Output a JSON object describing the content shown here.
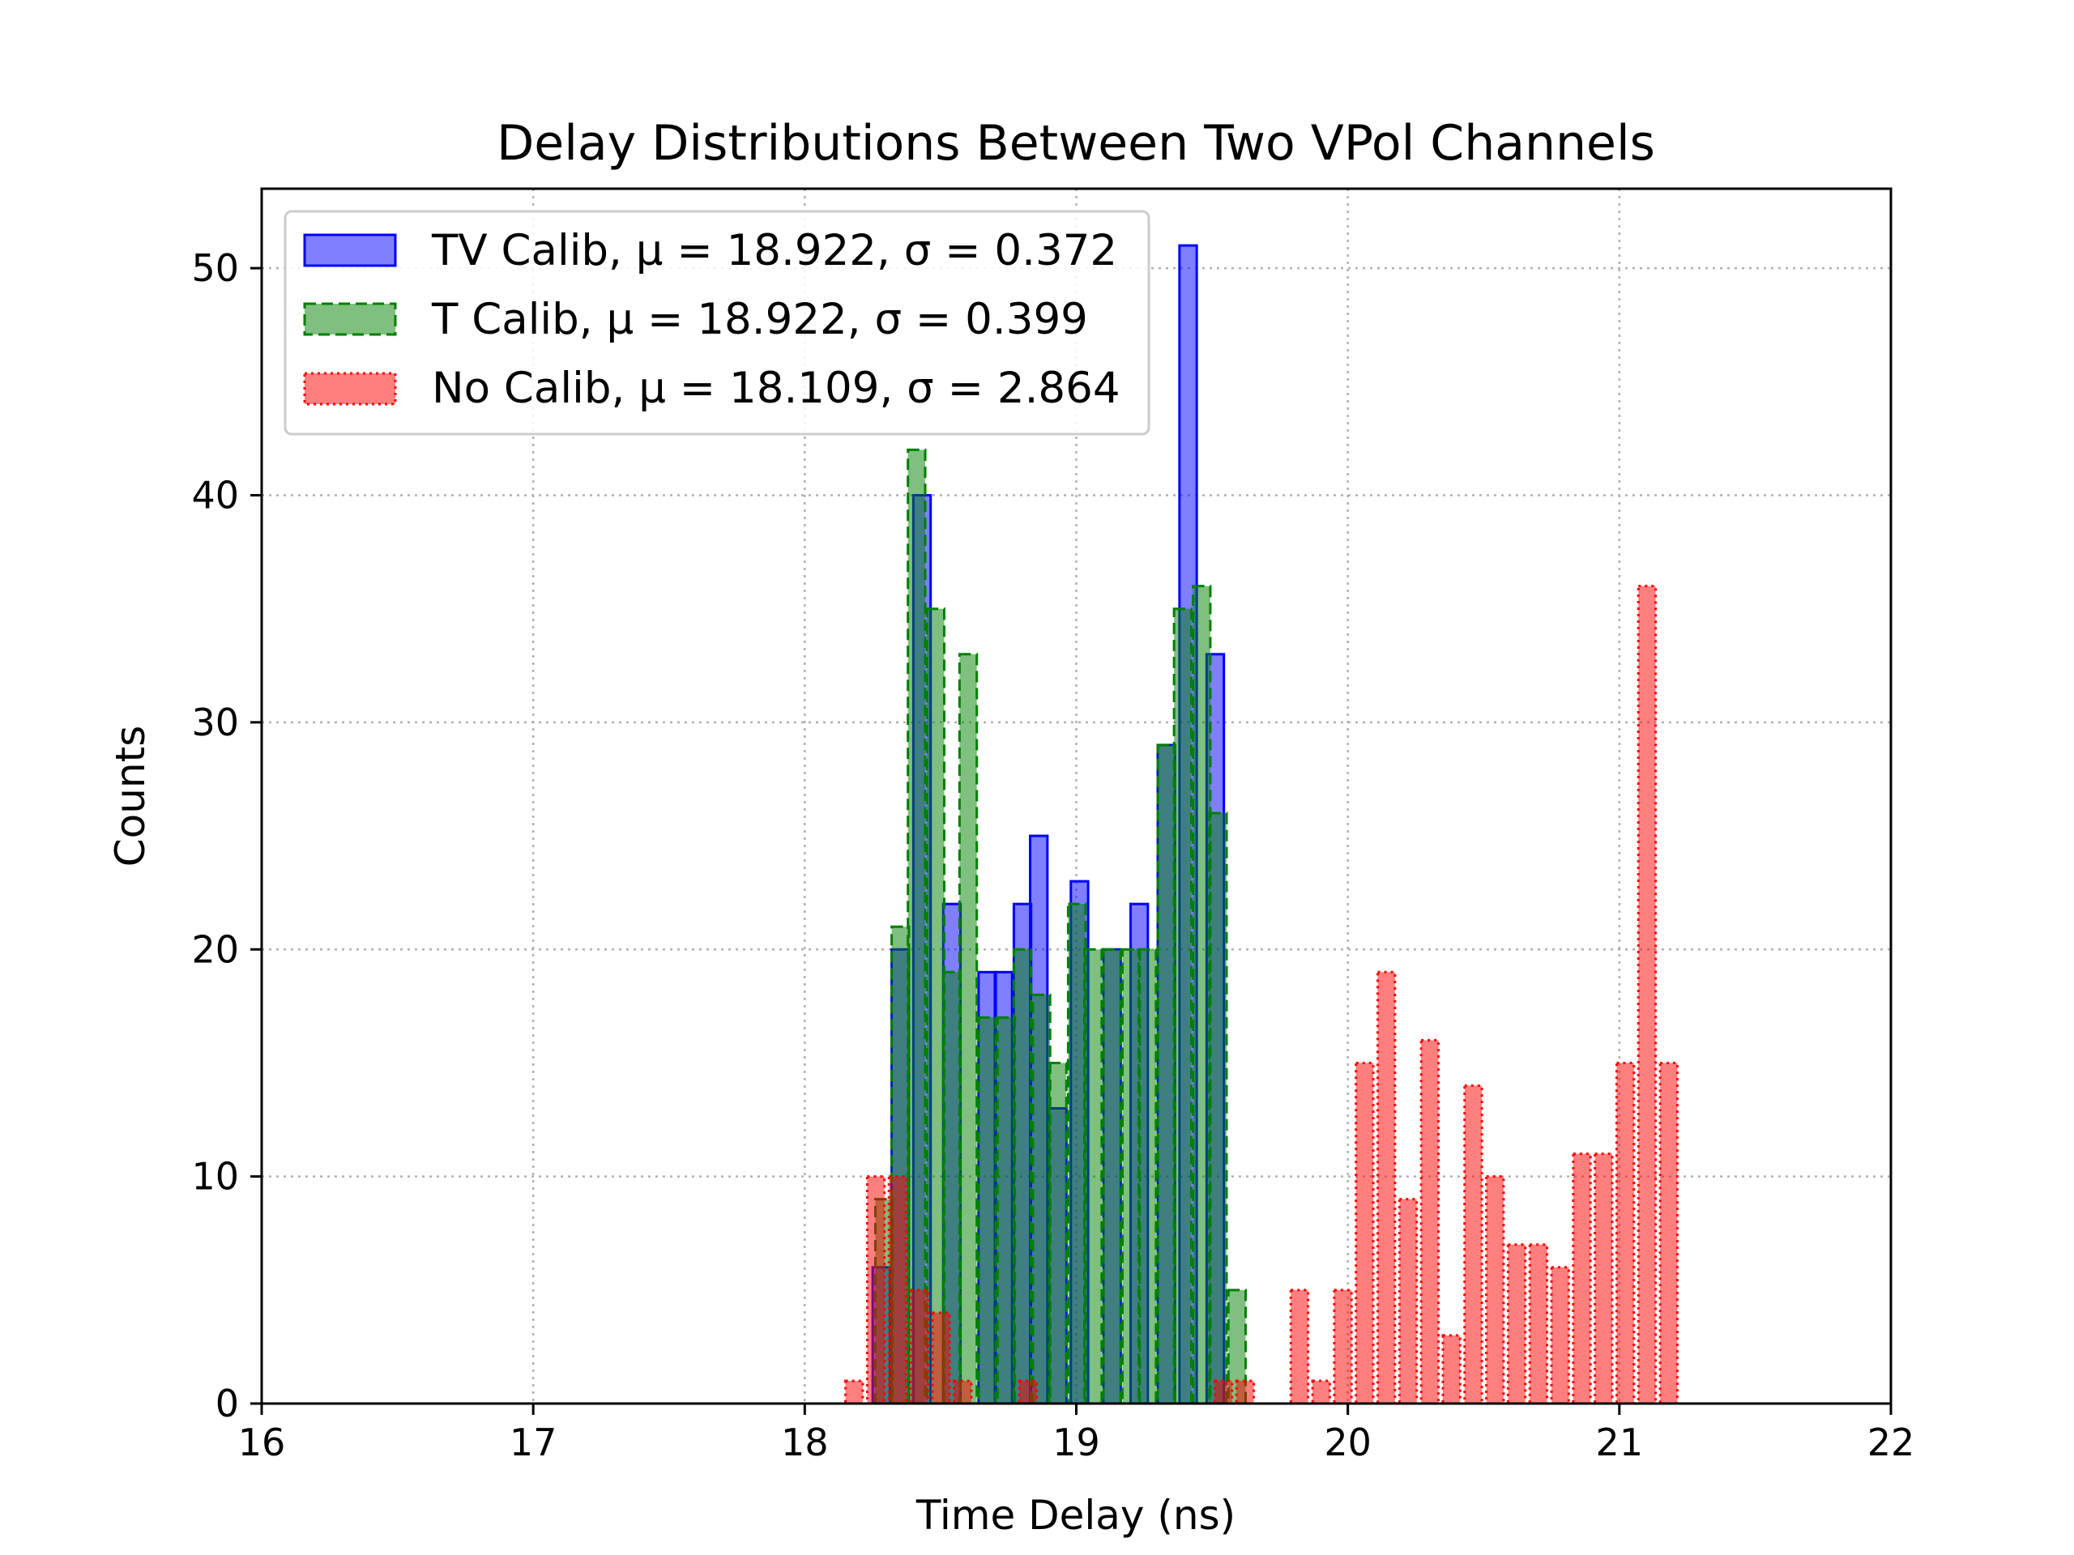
{
  "chart_data": {
    "type": "bar",
    "title": "Delay Distributions Between Two VPol Channels",
    "xlabel": "Time Delay (ns)",
    "ylabel": "Counts",
    "xlim": [
      16,
      22
    ],
    "ylim": [
      0,
      53.5
    ],
    "xticks": [
      16,
      17,
      18,
      19,
      20,
      21,
      22
    ],
    "yticks": [
      0,
      10,
      20,
      30,
      40,
      50
    ],
    "grid": true,
    "legend_position": "top-left",
    "bin_width": 0.0636,
    "series": [
      {
        "name": "TV Calib",
        "legend_label": "TV Calib, μ = 18.922, σ = 0.372",
        "color": "#0000ff",
        "linestyle": "solid",
        "bins": [
          [
            18.25,
            6
          ],
          [
            18.32,
            20
          ],
          [
            18.4,
            40
          ],
          [
            18.51,
            22
          ],
          [
            18.64,
            19
          ],
          [
            18.7,
            19
          ],
          [
            18.77,
            22
          ],
          [
            18.83,
            25
          ],
          [
            18.9,
            13
          ],
          [
            18.98,
            23
          ],
          [
            19.1,
            20
          ],
          [
            19.2,
            22
          ],
          [
            19.3,
            29
          ],
          [
            19.38,
            51
          ],
          [
            19.48,
            33
          ]
        ]
      },
      {
        "name": "T Calib",
        "legend_label": "T Calib, μ = 18.922, σ = 0.399",
        "color": "#008000",
        "linestyle": "dashed",
        "bins": [
          [
            18.26,
            9
          ],
          [
            18.32,
            21
          ],
          [
            18.38,
            42
          ],
          [
            18.45,
            35
          ],
          [
            18.51,
            19
          ],
          [
            18.57,
            33
          ],
          [
            18.64,
            17
          ],
          [
            18.71,
            17
          ],
          [
            18.77,
            20
          ],
          [
            18.84,
            18
          ],
          [
            18.9,
            15
          ],
          [
            18.97,
            22
          ],
          [
            19.03,
            20
          ],
          [
            19.1,
            20
          ],
          [
            19.17,
            20
          ],
          [
            19.23,
            20
          ],
          [
            19.3,
            29
          ],
          [
            19.36,
            35
          ],
          [
            19.43,
            36
          ],
          [
            19.49,
            26
          ],
          [
            19.56,
            5
          ]
        ]
      },
      {
        "name": "No Calib",
        "legend_label": "No Calib, μ = 18.109, σ = 2.864",
        "color": "#ff0000",
        "linestyle": "dotted",
        "bins": [
          [
            18.15,
            1
          ],
          [
            18.23,
            10
          ],
          [
            18.31,
            10
          ],
          [
            18.39,
            5
          ],
          [
            18.47,
            4
          ],
          [
            18.55,
            1
          ],
          [
            18.79,
            1
          ],
          [
            19.51,
            1
          ],
          [
            19.59,
            1
          ],
          [
            19.79,
            5
          ],
          [
            19.87,
            1
          ],
          [
            19.95,
            5
          ],
          [
            20.03,
            15
          ],
          [
            20.11,
            19
          ],
          [
            20.19,
            9
          ],
          [
            20.27,
            16
          ],
          [
            20.35,
            3
          ],
          [
            20.43,
            14
          ],
          [
            20.51,
            10
          ],
          [
            20.59,
            7
          ],
          [
            20.67,
            7
          ],
          [
            20.75,
            6
          ],
          [
            20.83,
            11
          ],
          [
            20.91,
            11
          ],
          [
            20.99,
            15
          ],
          [
            21.07,
            36
          ],
          [
            21.15,
            15
          ]
        ]
      }
    ]
  }
}
